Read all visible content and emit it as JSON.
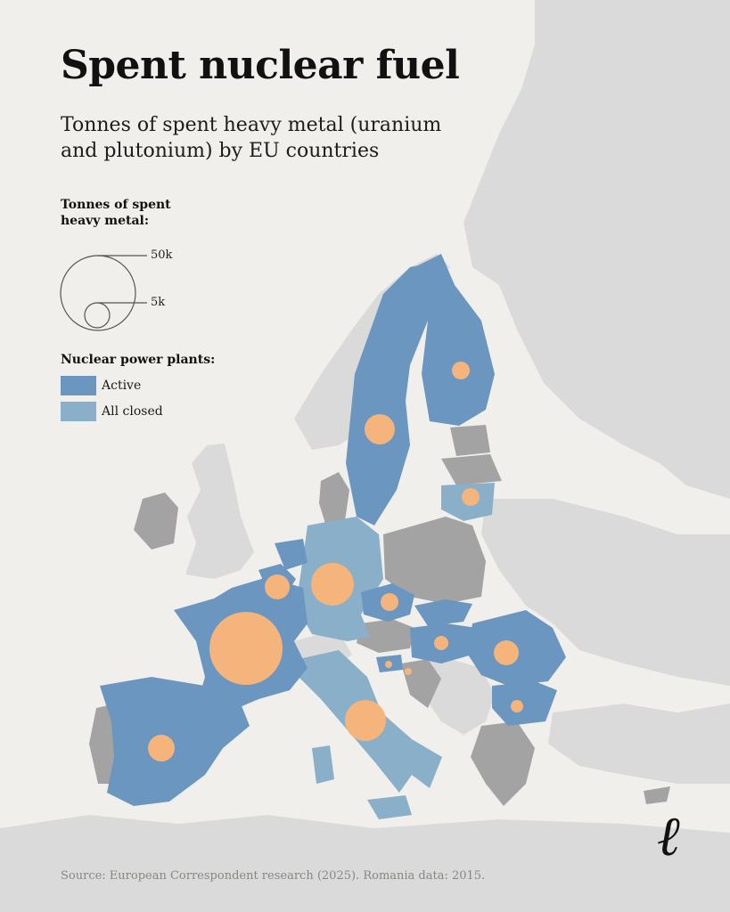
{
  "title": "Spent nuclear fuel",
  "subtitle": "Tonnes of spent heavy metal (uranium and plutonium) by EU countries",
  "legend": {
    "size_title": "Tonnes of spent heavy metal:",
    "size_large_label": "50k",
    "size_small_label": "5k",
    "plants_title": "Nuclear power plants:",
    "active_label": "Active",
    "closed_label": "All closed"
  },
  "source": "Source: European Correspondent research (2025). Romania data: 2015.",
  "colors": {
    "background_sea": "#f1efeb",
    "non_eu_land": "#dadada",
    "eu_no_nuclear": "#a3a3a3",
    "active": "#6b96bf",
    "all_closed": "#8aafc8",
    "bubble": "#f4b47b",
    "legend_stroke": "#555555"
  },
  "countries": [
    {
      "name": "France",
      "status": "active"
    },
    {
      "name": "Spain",
      "status": "active"
    },
    {
      "name": "Belgium",
      "status": "active"
    },
    {
      "name": "Netherlands",
      "status": "active"
    },
    {
      "name": "Sweden",
      "status": "active"
    },
    {
      "name": "Finland",
      "status": "active"
    },
    {
      "name": "Czechia",
      "status": "active"
    },
    {
      "name": "Slovakia",
      "status": "active"
    },
    {
      "name": "Hungary",
      "status": "active"
    },
    {
      "name": "Romania",
      "status": "active"
    },
    {
      "name": "Bulgaria",
      "status": "active"
    },
    {
      "name": "Slovenia",
      "status": "active"
    },
    {
      "name": "Germany",
      "status": "all-closed"
    },
    {
      "name": "Italy",
      "status": "all-closed"
    },
    {
      "name": "Lithuania",
      "status": "all-closed"
    }
  ]
}
